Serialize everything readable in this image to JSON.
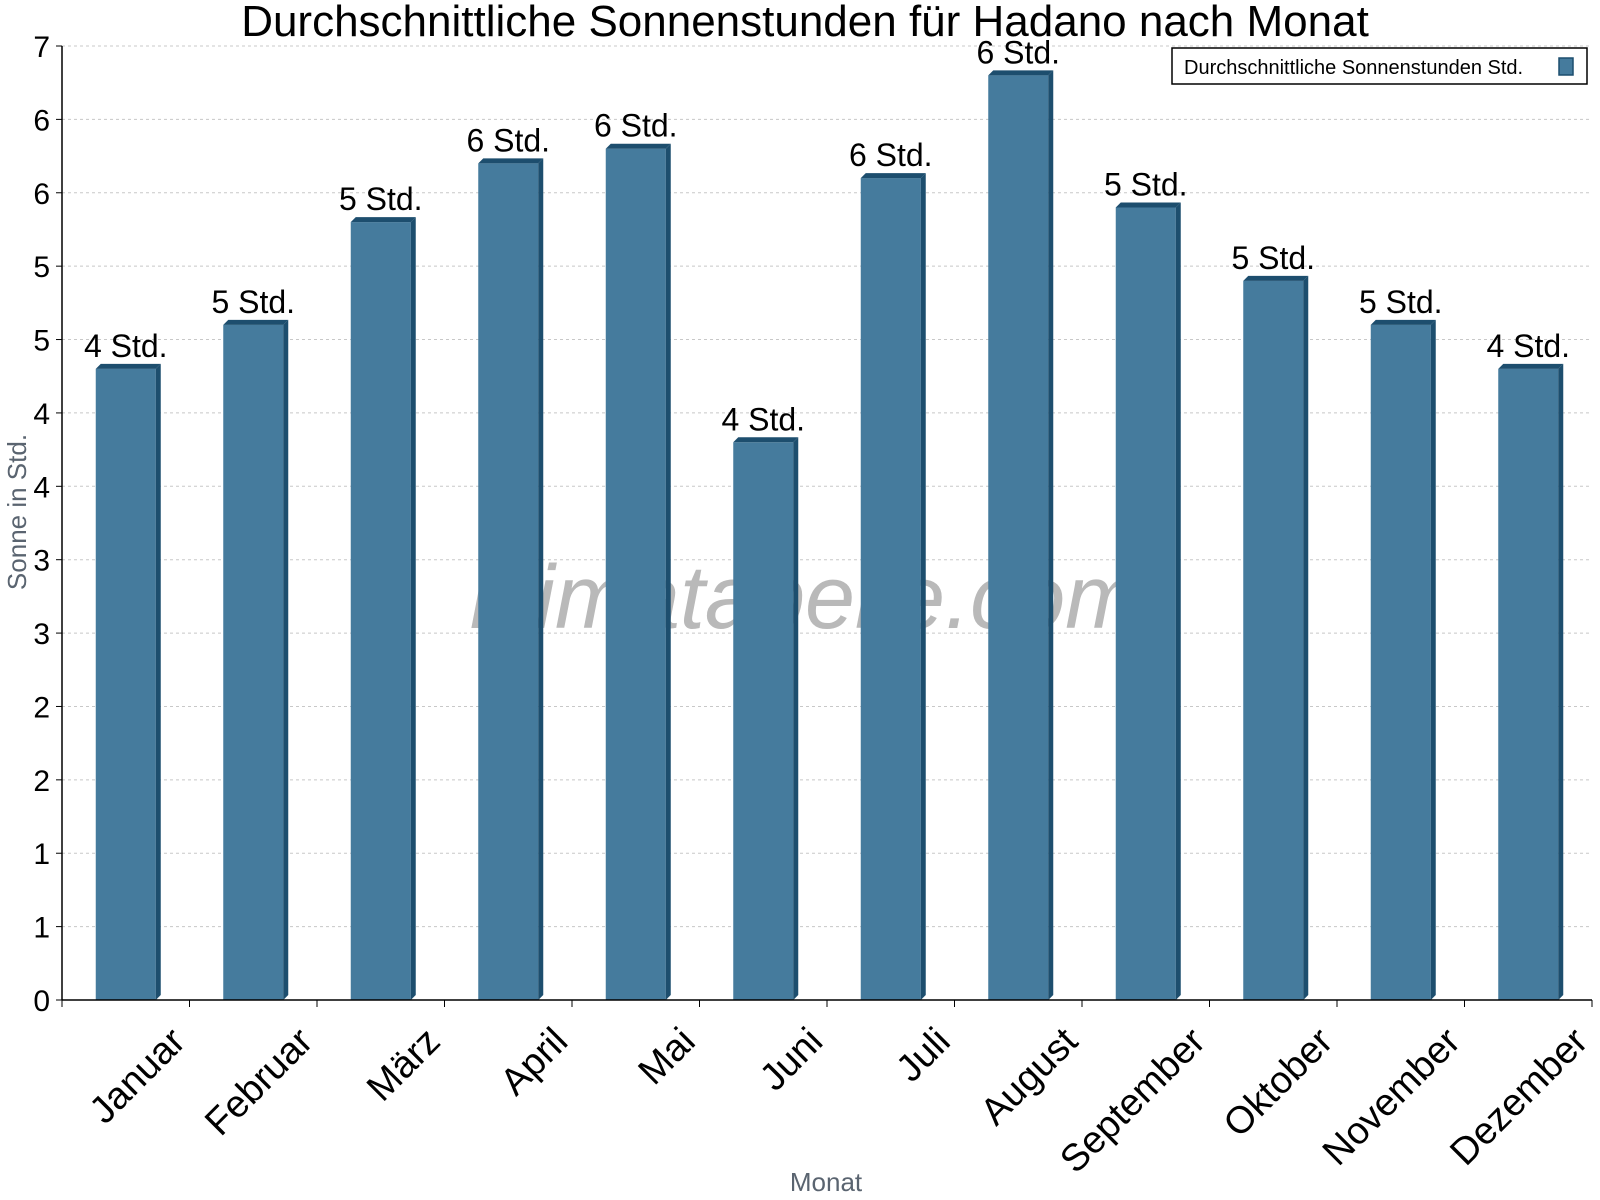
{
  "chart_data": {
    "type": "bar",
    "title": "Durchschnittliche Sonnenstunden für Hadano nach Monat",
    "xlabel": "Monat",
    "ylabel": "Sonne in Std.",
    "ylim": [
      0,
      6.5
    ],
    "yticks": [
      0,
      0.5,
      1,
      1.5,
      2,
      2.5,
      3,
      3.5,
      4,
      4.5,
      5,
      5.5,
      6,
      6.5
    ],
    "ytick_labels": [
      "0",
      "1",
      "1",
      "2",
      "2",
      "3",
      "3",
      "4",
      "4",
      "5",
      "5",
      "6",
      "6",
      "7"
    ],
    "categories": [
      "Januar",
      "Februar",
      "März",
      "April",
      "Mai",
      "Juni",
      "Juli",
      "August",
      "September",
      "Oktober",
      "November",
      "Dezember"
    ],
    "series": [
      {
        "name": "Durchschnittliche Sonnenstunden Std.",
        "values": [
          4.3,
          4.6,
          5.3,
          5.7,
          5.8,
          3.8,
          5.6,
          6.3,
          5.4,
          4.9,
          4.6,
          4.3
        ],
        "labels": [
          "4 Std.",
          "5 Std.",
          "5 Std.",
          "6 Std.",
          "6 Std.",
          "4 Std.",
          "6 Std.",
          "6 Std.",
          "5 Std.",
          "5 Std.",
          "5 Std.",
          "4 Std."
        ]
      }
    ],
    "colors": {
      "bar": "#457b9d",
      "bar_side": "#1d4e6e",
      "bar_top": "#1d4e6e",
      "grid": "#c8c8c8"
    },
    "grid": true,
    "legend": "top-right",
    "watermark": "klimatabelle.com"
  }
}
